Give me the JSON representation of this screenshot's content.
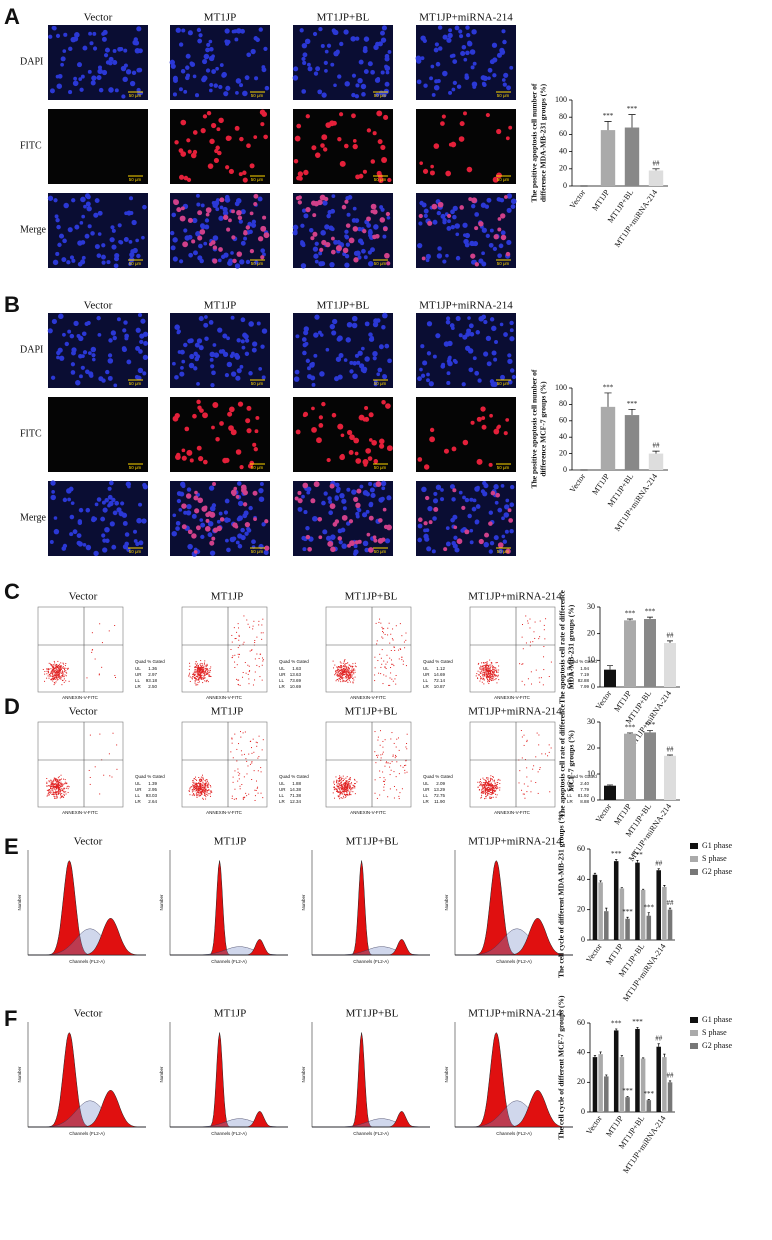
{
  "panels": [
    {
      "label": "A",
      "columns": [
        "Vector",
        "MT1JP",
        "MT1JP+BL",
        "MT1JP+miRNA-214"
      ],
      "rows": [
        "DAPI",
        "FITC",
        "Merge"
      ],
      "scale_bar": "50 μm"
    },
    {
      "label": "B",
      "columns": [
        "Vector",
        "MT1JP",
        "MT1JP+BL",
        "MT1JP+miRNA-214"
      ],
      "rows": [
        "DAPI",
        "FITC",
        "Merge"
      ],
      "scale_bar": "50 μm"
    },
    {
      "label": "C",
      "columns": [
        "Vector",
        "MT1JP",
        "MT1JP+BL",
        "MT1JP+miRNA-214"
      ],
      "x_axis": "ANNEXIN-V-FITC",
      "quad_header": "Quad  % Gated",
      "quad_names": [
        "UL",
        "UR",
        "LL",
        "LR"
      ],
      "quad_values": [
        [
          "1.36",
          "2.97",
          "93.18",
          "2.50"
        ],
        [
          "1.63",
          "13.63",
          "73.69",
          "10.69"
        ],
        [
          "1.12",
          "14.69",
          "72.14",
          "10.87"
        ],
        [
          "1.94",
          "7.19",
          "82.88",
          "7.99"
        ]
      ]
    },
    {
      "label": "D",
      "columns": [
        "Vector",
        "MT1JP",
        "MT1JP+BL",
        "MT1JP+miRNA-214"
      ],
      "x_axis": "ANNEXIN-V-FITC",
      "quad_header": "Quad  % Gated",
      "quad_names": [
        "UL",
        "UR",
        "LL",
        "LR"
      ],
      "quad_values": [
        [
          "1.39",
          "2.95",
          "93.03",
          "2.64"
        ],
        [
          "1.88",
          "14.38",
          "71.38",
          "12.34"
        ],
        [
          "2.09",
          "13.29",
          "72.75",
          "11.90"
        ],
        [
          "2.40",
          "7.79",
          "81.92",
          "8.88"
        ]
      ]
    },
    {
      "label": "E",
      "columns": [
        "Vector",
        "MT1JP",
        "MT1JP+BL",
        "MT1JP+miRNA-214"
      ],
      "x_axis": "Channels (FL2-A)",
      "y_axis": "Number"
    },
    {
      "label": "F",
      "columns": [
        "Vector",
        "MT1JP",
        "MT1JP+BL",
        "MT1JP+miRNA-214"
      ],
      "x_axis": "Channels (FL2-A)",
      "y_axis": "Number"
    }
  ],
  "chart_data": [
    {
      "type": "bar",
      "ylabel_lines": [
        "The positive apoptosis cell number of",
        "difference MDA-MB-231 groups (%)"
      ],
      "categories": [
        "Vector",
        "MT1JP",
        "MT1JP+BL",
        "MT1JP+miRNA-214"
      ],
      "values": [
        0,
        65,
        68,
        18
      ],
      "errors": [
        0,
        10,
        15,
        2
      ],
      "annotations": [
        null,
        "***",
        "***",
        "##"
      ],
      "colors": [
        "#222222",
        "#aaaaaa",
        "#888888",
        "#dddddd"
      ],
      "ylim": [
        0,
        100
      ],
      "yticks": [
        0,
        20,
        40,
        60,
        80,
        100
      ]
    },
    {
      "type": "bar",
      "ylabel_lines": [
        "The positive apoptosis cell number of",
        "difference MCF-7 groups (%)"
      ],
      "categories": [
        "Vector",
        "MT1JP",
        "MT1JP+BL",
        "MT1JP+miRNA-214"
      ],
      "values": [
        0,
        77,
        67,
        20
      ],
      "errors": [
        0,
        17,
        7,
        3
      ],
      "annotations": [
        null,
        "***",
        "***",
        "##"
      ],
      "colors": [
        "#222222",
        "#aaaaaa",
        "#888888",
        "#dddddd"
      ],
      "ylim": [
        0,
        100
      ],
      "yticks": [
        0,
        20,
        40,
        60,
        80,
        100
      ]
    },
    {
      "type": "bar",
      "ylabel_lines": [
        "The apoptosis cell rate of difference",
        "MDA-MB-231 groups (%)"
      ],
      "categories": [
        "Vector",
        "MT1JP",
        "MT1JP+BL",
        "MT1JP+miRNA-214"
      ],
      "values": [
        6.5,
        25,
        25.5,
        16.5
      ],
      "errors": [
        1.5,
        0.5,
        0.7,
        0.8
      ],
      "annotations": [
        null,
        "***",
        "***",
        "##"
      ],
      "colors": [
        "#111111",
        "#aaaaaa",
        "#888888",
        "#dddddd"
      ],
      "ylim": [
        0,
        30
      ],
      "yticks": [
        0,
        10,
        20,
        30
      ]
    },
    {
      "type": "bar",
      "ylabel_lines": [
        "The apoptosis cell rate of difference",
        "MCF-7 groups (%)"
      ],
      "categories": [
        "Vector",
        "MT1JP",
        "MT1JP+BL",
        "MT1JP+miRNA-214"
      ],
      "values": [
        5.5,
        25.5,
        26,
        17
      ],
      "errors": [
        0.3,
        0.3,
        0.7,
        0.3
      ],
      "annotations": [
        null,
        "***",
        "***",
        "##"
      ],
      "colors": [
        "#111111",
        "#aaaaaa",
        "#888888",
        "#dddddd"
      ],
      "ylim": [
        0,
        30
      ],
      "yticks": [
        0,
        10,
        20,
        30
      ]
    },
    {
      "type": "bar",
      "ylabel_lines": [
        "The cell cycle of different MDA-MB-231 groups (%)"
      ],
      "categories": [
        "Vector",
        "MT1JP",
        "MT1JP+BL",
        "MT1JP+miRNA-214"
      ],
      "series": [
        {
          "name": "G1 phase",
          "color": "#111111",
          "values": [
            43,
            52,
            51,
            46
          ],
          "errors": [
            1,
            1,
            1.5,
            1
          ],
          "annotations": [
            null,
            "***",
            "***",
            "##"
          ]
        },
        {
          "name": "S phase",
          "color": "#aaaaaa",
          "values": [
            38,
            34,
            33,
            35
          ],
          "errors": [
            1,
            0.5,
            0.5,
            1
          ],
          "annotations": [
            null,
            null,
            null,
            null
          ]
        },
        {
          "name": "G2 phase",
          "color": "#777777",
          "values": [
            19,
            14,
            16,
            20
          ],
          "errors": [
            2,
            1,
            2,
            1
          ],
          "annotations": [
            null,
            "***",
            "***",
            "##"
          ]
        }
      ],
      "ylim": [
        0,
        60
      ],
      "yticks": [
        0,
        20,
        40,
        60
      ],
      "legend": "right"
    },
    {
      "type": "bar",
      "ylabel_lines": [
        "The cell cycle of different MCF-7 groups (%)"
      ],
      "categories": [
        "Vector",
        "MT1JP",
        "MT1JP+BL",
        "MT1JP+miRNA-214"
      ],
      "series": [
        {
          "name": "G1 phase",
          "color": "#111111",
          "values": [
            37,
            55,
            56,
            44
          ],
          "errors": [
            1,
            1,
            1,
            2
          ],
          "annotations": [
            null,
            "***",
            "***",
            "##"
          ]
        },
        {
          "name": "S phase",
          "color": "#aaaaaa",
          "values": [
            39,
            37,
            36,
            37
          ],
          "errors": [
            1.5,
            1,
            0.5,
            2
          ],
          "annotations": [
            null,
            null,
            null,
            null
          ]
        },
        {
          "name": "G2 phase",
          "color": "#777777",
          "values": [
            24,
            10,
            8,
            20
          ],
          "errors": [
            1,
            0.5,
            0.5,
            1
          ],
          "annotations": [
            null,
            "***",
            "***",
            "##"
          ]
        }
      ],
      "ylim": [
        0,
        60
      ],
      "yticks": [
        0,
        20,
        40,
        60
      ],
      "legend": "right"
    }
  ]
}
